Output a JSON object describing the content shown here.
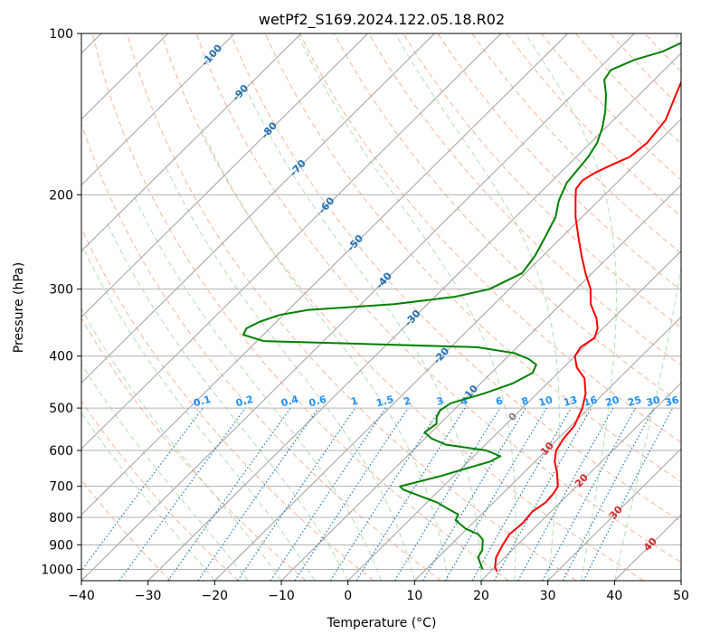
{
  "chart_data": {
    "type": "line",
    "title": "wetPf2_S169.2024.122.05.18.R02",
    "xlabel": "Temperature (°C)",
    "ylabel": "Pressure (hPa)",
    "xlim": [
      -40,
      50
    ],
    "ylim": [
      1050,
      100
    ],
    "y_scale": "log",
    "skew": true,
    "grid": true,
    "x_ticks": [
      "−40",
      "−30",
      "−20",
      "−10",
      "0",
      "10",
      "20",
      "30",
      "40",
      "50"
    ],
    "x_tick_values": [
      -40,
      -30,
      -20,
      -10,
      0,
      10,
      20,
      30,
      40,
      50
    ],
    "y_ticks": [
      "100",
      "200",
      "300",
      "400",
      "500",
      "600",
      "700",
      "800",
      "900",
      "1000"
    ],
    "y_tick_values": [
      100,
      200,
      300,
      400,
      500,
      600,
      700,
      800,
      900,
      1000
    ],
    "colors": {
      "temperature": "#ff0000",
      "dewpoint": "#008000",
      "isotherm": "#a0a0a0",
      "dry_adiabat": "#f4a582",
      "moist_adiabat": "#a6d9a6",
      "mixing_ratio": "#1f77b4",
      "isotherm_label": "#1f6fb4",
      "mixing_label": "#1e90ff",
      "warm_label": "#d62728",
      "zero_label": "#808080"
    },
    "series": [
      {
        "name": "",
        "key": "temperature",
        "points": [
          [
            1010,
            21.0
          ],
          [
            990,
            20.0
          ],
          [
            950,
            18.7
          ],
          [
            900,
            17.8
          ],
          [
            860,
            17.2
          ],
          [
            820,
            17.5
          ],
          [
            780,
            17.2
          ],
          [
            750,
            17.8
          ],
          [
            720,
            17.6
          ],
          [
            700,
            17.2
          ],
          [
            660,
            15.0
          ],
          [
            630,
            13.0
          ],
          [
            600,
            11.5
          ],
          [
            570,
            10.8
          ],
          [
            540,
            10.5
          ],
          [
            500,
            9.0
          ],
          [
            470,
            7.3
          ],
          [
            440,
            4.8
          ],
          [
            420,
            2.0
          ],
          [
            400,
            0.0
          ],
          [
            385,
            -0.5
          ],
          [
            370,
            0.2
          ],
          [
            355,
            -0.8
          ],
          [
            340,
            -2.5
          ],
          [
            320,
            -5.5
          ],
          [
            300,
            -7.8
          ],
          [
            280,
            -11.0
          ],
          [
            260,
            -14.2
          ],
          [
            240,
            -17.5
          ],
          [
            220,
            -21.0
          ],
          [
            205,
            -23.5
          ],
          [
            195,
            -25.2
          ],
          [
            188,
            -25.5
          ],
          [
            182,
            -24.8
          ],
          [
            176,
            -23.5
          ],
          [
            170,
            -22.0
          ],
          [
            160,
            -21.5
          ],
          [
            145,
            -22.2
          ],
          [
            130,
            -24.5
          ],
          [
            118,
            -26.5
          ],
          [
            110,
            -27.5
          ],
          [
            100,
            -30.0
          ]
        ]
      },
      {
        "name": "",
        "key": "dewpoint",
        "points": [
          [
            1000,
            18.5
          ],
          [
            980,
            17.5
          ],
          [
            950,
            16.0
          ],
          [
            920,
            15.5
          ],
          [
            880,
            14.0
          ],
          [
            860,
            12.5
          ],
          [
            840,
            9.8
          ],
          [
            810,
            7.0
          ],
          [
            790,
            6.5
          ],
          [
            770,
            4.0
          ],
          [
            750,
            1.5
          ],
          [
            730,
            -2.0
          ],
          [
            710,
            -5.5
          ],
          [
            700,
            -6.5
          ],
          [
            690,
            -5.0
          ],
          [
            670,
            -2.0
          ],
          [
            650,
            0.5
          ],
          [
            630,
            3.2
          ],
          [
            615,
            4.0
          ],
          [
            600,
            1.0
          ],
          [
            585,
            -6.0
          ],
          [
            570,
            -9.0
          ],
          [
            555,
            -11.0
          ],
          [
            535,
            -10.5
          ],
          [
            520,
            -11.5
          ],
          [
            505,
            -12.0
          ],
          [
            490,
            -11.5
          ],
          [
            470,
            -8.0
          ],
          [
            450,
            -5.2
          ],
          [
            430,
            -3.8
          ],
          [
            415,
            -4.5
          ],
          [
            405,
            -6.5
          ],
          [
            395,
            -9.5
          ],
          [
            385,
            -16.0
          ],
          [
            375,
            -49.0
          ],
          [
            365,
            -53.0
          ],
          [
            355,
            -53.5
          ],
          [
            345,
            -52.5
          ],
          [
            335,
            -50.5
          ],
          [
            328,
            -47.0
          ],
          [
            320,
            -35.0
          ],
          [
            310,
            -27.0
          ],
          [
            300,
            -23.0
          ],
          [
            280,
            -20.5
          ],
          [
            260,
            -21.2
          ],
          [
            240,
            -22.5
          ],
          [
            220,
            -24.0
          ],
          [
            205,
            -26.0
          ],
          [
            190,
            -27.5
          ],
          [
            170,
            -28.2
          ],
          [
            160,
            -29.0
          ],
          [
            150,
            -30.5
          ],
          [
            140,
            -32.5
          ],
          [
            130,
            -35.0
          ],
          [
            122,
            -37.5
          ],
          [
            117,
            -38.0
          ],
          [
            112,
            -36.0
          ],
          [
            108,
            -33.0
          ],
          [
            104,
            -31.5
          ],
          [
            100,
            -31.8
          ]
        ]
      }
    ],
    "isotherm_labels": [
      "-100",
      "-90",
      "-80",
      "-70",
      "-60",
      "-50",
      "-40",
      "-30",
      "-20",
      "-10",
      "0",
      "10",
      "20",
      "30",
      "40"
    ],
    "isotherm_label_values": [
      -100,
      -90,
      -80,
      -70,
      -60,
      -50,
      -40,
      -30,
      -20,
      -10,
      0,
      10,
      20,
      30,
      40
    ],
    "mixing_ratio_labels": [
      "0.1",
      "0.2",
      "0.4",
      "0.6",
      "1",
      "1.5",
      "2",
      "3",
      "4",
      "6",
      "8",
      "10",
      "13",
      "16",
      "20",
      "25",
      "30",
      "36"
    ],
    "mixing_ratio_values": [
      0.1,
      0.2,
      0.4,
      0.6,
      1,
      1.5,
      2,
      3,
      4,
      6,
      8,
      10,
      13,
      16,
      20,
      25,
      30,
      36
    ]
  }
}
